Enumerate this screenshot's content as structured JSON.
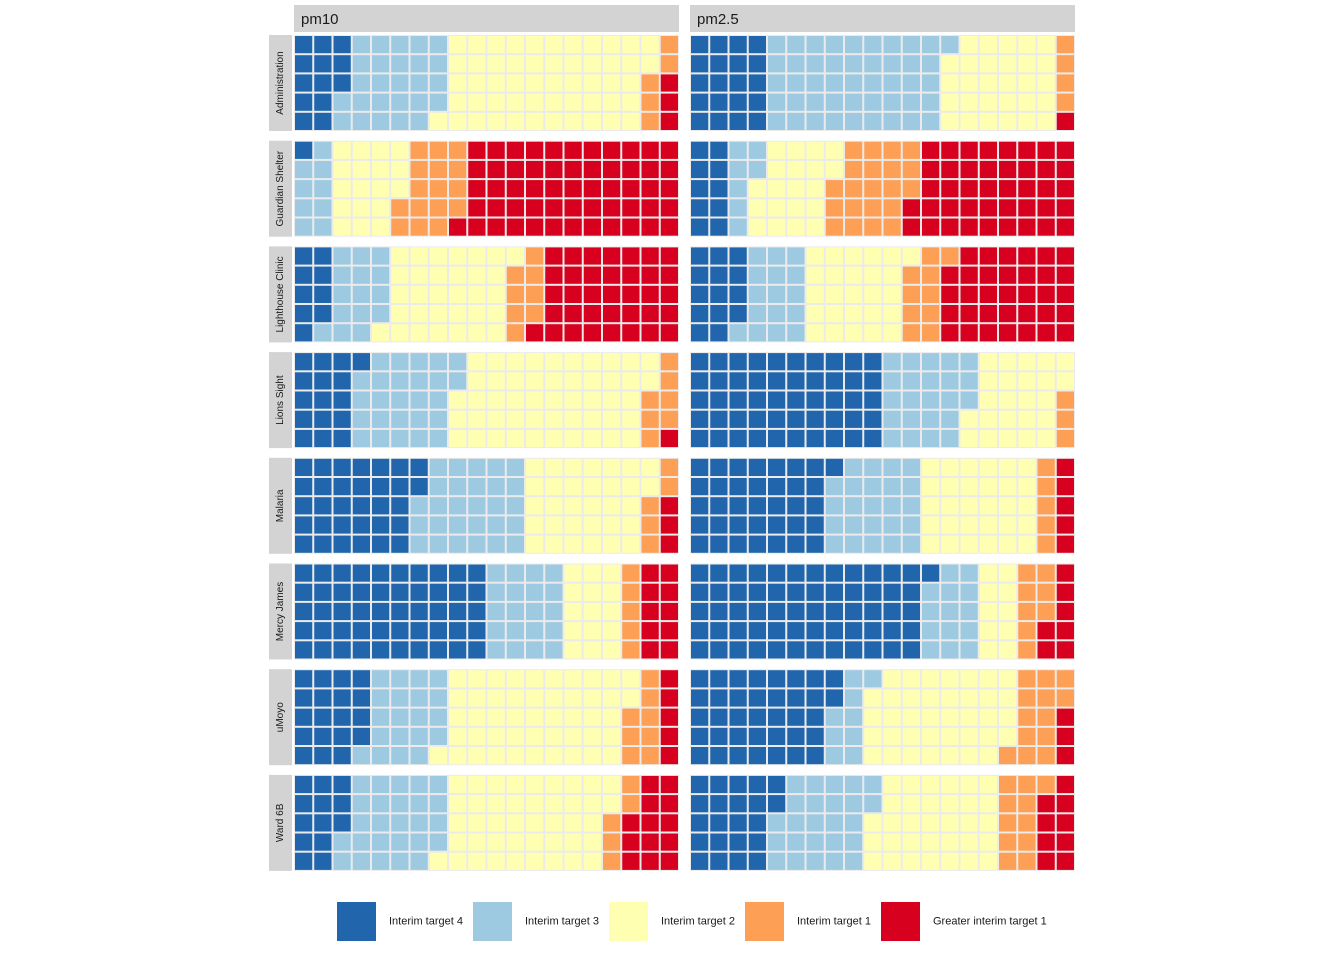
{
  "chart_data": {
    "type": "waffle",
    "columns": [
      "pm10",
      "pm2.5"
    ],
    "rows": [
      "Administration",
      "Guardian Shelter",
      "Lighthouse Clinic",
      "Lions Sight",
      "Malaria",
      "Mercy James",
      "uMoyo",
      "Ward 6B"
    ],
    "grid": {
      "cols": 20,
      "rows": 5,
      "cells": 100
    },
    "categories": [
      "Interim target 4",
      "Interim target 3",
      "Interim target 2",
      "Interim target 1",
      "Greater interim target 1"
    ],
    "colors": {
      "Interim target 4": "#2166ac",
      "Interim target 3": "#9ecae1",
      "Interim target 2": "#ffffb2",
      "Interim target 1": "#fd9f55",
      "Greater interim target 1": "#d7001f"
    },
    "panel_background": "#ebebeb",
    "strip_background": "#d3d3d3",
    "values": {
      "pm10": {
        "Administration": [
          13,
          26,
          53,
          5,
          3
        ],
        "Guardian Shelter": [
          1,
          9,
          18,
          16,
          56
        ],
        "Lighthouse Clinic": [
          9,
          15,
          32,
          8,
          36
        ],
        "Lions Sight": [
          16,
          26,
          50,
          7,
          1
        ],
        "Malaria": [
          32,
          28,
          32,
          5,
          3
        ],
        "Mercy James": [
          50,
          20,
          15,
          5,
          10
        ],
        "uMoyo": [
          19,
          20,
          48,
          8,
          5
        ],
        "Ward 6B": [
          13,
          26,
          43,
          5,
          13
        ]
      },
      "pm2.5": {
        "Administration": [
          20,
          46,
          29,
          4,
          1
        ],
        "Guardian Shelter": [
          10,
          7,
          20,
          21,
          42
        ],
        "Lighthouse Clinic": [
          14,
          16,
          26,
          10,
          34
        ],
        "Lions Sight": [
          50,
          23,
          24,
          3,
          0
        ],
        "Malaria": [
          36,
          24,
          30,
          5,
          5
        ],
        "Mercy James": [
          61,
          14,
          10,
          8,
          7
        ],
        "uMoyo": [
          37,
          9,
          38,
          13,
          3
        ],
        "Ward 6B": [
          22,
          25,
          33,
          11,
          9
        ]
      }
    },
    "legend": {
      "position": "bottom",
      "labels": [
        "Interim target 4",
        "Interim target 3",
        "Interim target 2",
        "Interim target 1",
        "Greater interim target 1"
      ]
    }
  }
}
